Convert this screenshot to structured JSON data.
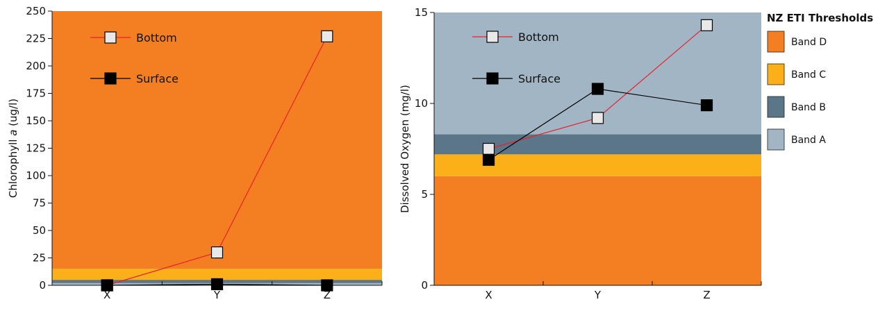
{
  "chart_data": [
    {
      "type": "line",
      "ylabel_prefix": "Chlorophyll ",
      "ylabel_italic": "a",
      "ylabel_suffix": " (ug/l)",
      "categories": [
        "X",
        "Y",
        "Z"
      ],
      "ylim": [
        0,
        250
      ],
      "yticks": [
        0,
        25,
        50,
        75,
        100,
        125,
        150,
        175,
        200,
        225,
        250
      ],
      "bands": [
        {
          "name": "Band A",
          "from": 0,
          "to": 2,
          "color": "#a2b5c4"
        },
        {
          "name": "Band B",
          "from": 2,
          "to": 5,
          "color": "#5b7689"
        },
        {
          "name": "Band C",
          "from": 5,
          "to": 15,
          "color": "#fbb01a"
        },
        {
          "name": "Band D",
          "from": 15,
          "to": 250,
          "color": "#f47f22"
        }
      ],
      "series": [
        {
          "name": "Bottom",
          "values": [
            0,
            30,
            227
          ],
          "line": "#e8202a",
          "fill": "#e8e8e8"
        },
        {
          "name": "Surface",
          "values": [
            0,
            1,
            0
          ],
          "line": "#000000",
          "fill": "#000000"
        }
      ],
      "legend": "top-left"
    },
    {
      "type": "line",
      "ylabel": "Dissolved Oxygen (mg/l)",
      "categories": [
        "X",
        "Y",
        "Z"
      ],
      "ylim": [
        0,
        15
      ],
      "yticks": [
        0,
        5,
        10,
        15
      ],
      "bands": [
        {
          "name": "Band D",
          "from": 0,
          "to": 6,
          "color": "#f47f22"
        },
        {
          "name": "Band C",
          "from": 6,
          "to": 7.2,
          "color": "#fbb01a"
        },
        {
          "name": "Band B",
          "from": 7.2,
          "to": 8.3,
          "color": "#5b7689"
        },
        {
          "name": "Band A",
          "from": 8.3,
          "to": 15,
          "color": "#a2b5c4"
        }
      ],
      "series": [
        {
          "name": "Bottom",
          "values": [
            7.5,
            9.2,
            14.3
          ],
          "line": "#e8202a",
          "fill": "#e8e8e8"
        },
        {
          "name": "Surface",
          "values": [
            6.9,
            10.8,
            9.9
          ],
          "line": "#000000",
          "fill": "#000000"
        }
      ],
      "legend": "top-left"
    }
  ],
  "thresholds_legend": {
    "title": "NZ ETI Thresholds",
    "items": [
      {
        "label": "Band D",
        "color": "#f47f22"
      },
      {
        "label": "Band C",
        "color": "#fbb01a"
      },
      {
        "label": "Band B",
        "color": "#5b7689"
      },
      {
        "label": "Band A",
        "color": "#a2b5c4"
      }
    ]
  }
}
